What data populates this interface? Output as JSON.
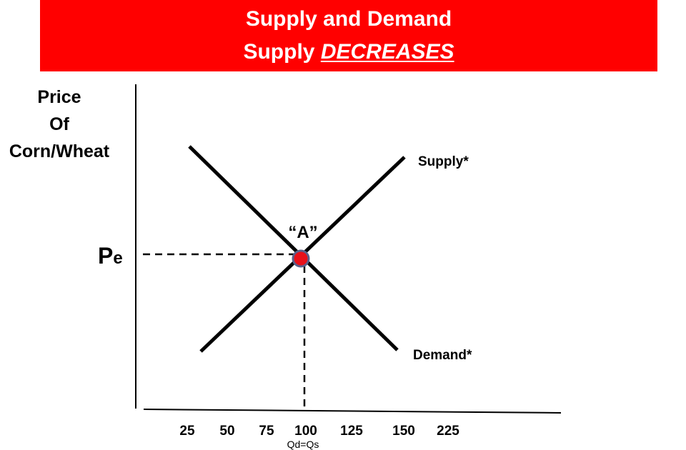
{
  "header": {
    "title": "Supply and Demand",
    "subtitle_prefix": "Supply ",
    "subtitle_emphasis": "DECREASES",
    "background_color": "#ff0000",
    "text_color": "#ffffff"
  },
  "y_axis": {
    "label_lines": [
      "Price",
      "Of",
      "Corn/Wheat"
    ]
  },
  "price_marker": {
    "main": "P",
    "sub": "e"
  },
  "curves": {
    "supply_label": "Supply*",
    "demand_label": "Demand*"
  },
  "equilibrium": {
    "label": "“A”",
    "marker_fill": "#e8101a",
    "marker_stroke": "#5a5f8a",
    "x_value": 100
  },
  "x_axis": {
    "ticks": [
      "25",
      "50",
      "75",
      "100",
      "125",
      "150",
      "225"
    ],
    "equilibrium_label": "Qd=Qs"
  }
}
